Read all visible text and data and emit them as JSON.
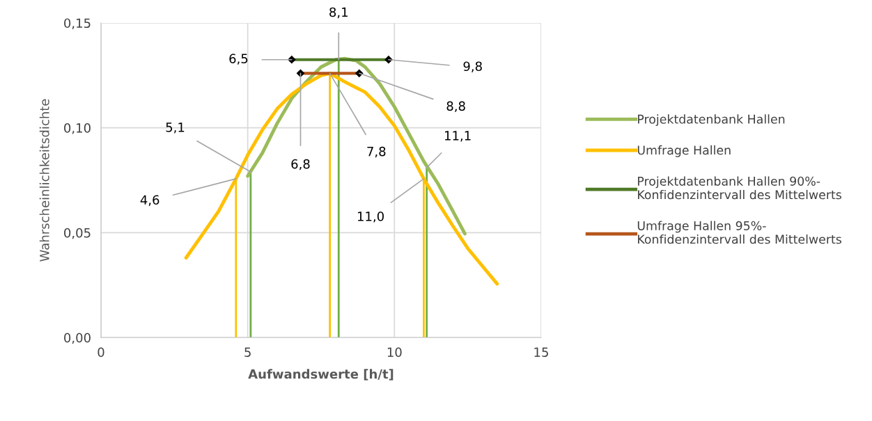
{
  "chart_data": {
    "type": "line",
    "xlabel": "Aufwandswerte [h/t]",
    "ylabel": "Wahrscheinlichkeitsdichte",
    "xlim": [
      0,
      15
    ],
    "xticks": [
      0,
      5,
      10,
      15
    ],
    "ylim": [
      0,
      0.15
    ],
    "yticks": [
      {
        "value": 0,
        "label": "0,00"
      },
      {
        "value": 0.05,
        "label": "0,05"
      },
      {
        "value": 0.1,
        "label": "0,10"
      },
      {
        "value": 0.15,
        "label": "0,15"
      }
    ],
    "grid": true,
    "legend": "right",
    "series": [
      {
        "name": "Projektdatenbank Hallen",
        "color": "#9bbb59",
        "x": [
          5.0,
          5.5,
          6.0,
          6.5,
          7.0,
          7.5,
          8.0,
          8.3,
          8.7,
          9.0,
          9.5,
          10.0,
          10.5,
          11.0,
          11.5,
          12.0,
          12.4
        ],
        "values": [
          0.077,
          0.088,
          0.102,
          0.114,
          0.122,
          0.129,
          0.1325,
          0.133,
          0.132,
          0.129,
          0.121,
          0.11,
          0.097,
          0.084,
          0.073,
          0.06,
          0.0495
        ]
      },
      {
        "name": "Umfrage Hallen",
        "color": "#ffc000",
        "x": [
          2.9,
          3.5,
          4.0,
          4.6,
          5.0,
          5.5,
          6.0,
          6.5,
          7.0,
          7.5,
          7.8,
          8.3,
          9.0,
          9.5,
          10.0,
          10.5,
          11.0,
          11.5,
          12.0,
          12.5,
          13.0,
          13.5
        ],
        "values": [
          0.038,
          0.05,
          0.06,
          0.0757,
          0.087,
          0.099,
          0.109,
          0.116,
          0.121,
          0.125,
          0.126,
          0.122,
          0.117,
          0.11,
          0.101,
          0.089,
          0.0757,
          0.064,
          0.053,
          0.0425,
          0.034,
          0.0256
        ]
      },
      {
        "name": "Projektdatenbank Hallen 90%-\nKonfidenzintervall des Mittelwerts",
        "color": "#4f7a28",
        "marker": "diamond",
        "x": [
          6.5,
          9.8
        ],
        "values": [
          0.1325,
          0.1325
        ]
      },
      {
        "name": "Umfrage Hallen 95%-\nKonfidenzintervall des Mittelwerts",
        "color": "#b5561a",
        "marker": "diamond",
        "x": [
          6.8,
          8.8
        ],
        "values": [
          0.126,
          0.126
        ]
      },
      {
        "color": "#ffc000",
        "x": [
          4.6,
          4.6
        ],
        "values": [
          0,
          0.0757
        ]
      },
      {
        "color": "#70ad47",
        "x": [
          5.1,
          5.1
        ],
        "values": [
          0,
          0.079
        ]
      },
      {
        "color": "#ffc000",
        "x": [
          7.8,
          7.8
        ],
        "values": [
          0,
          0.126
        ]
      },
      {
        "color": "#70ad47",
        "x": [
          8.1,
          8.1
        ],
        "values": [
          0,
          0.1325
        ]
      },
      {
        "color": "#ffc000",
        "x": [
          11.0,
          11.0
        ],
        "values": [
          0,
          0.0757
        ]
      },
      {
        "color": "#70ad47",
        "x": [
          11.1,
          11.1
        ],
        "values": [
          0,
          0.081
        ]
      }
    ],
    "annotations": [
      {
        "text": "4,6",
        "x": 4.6,
        "y": 0.0757
      },
      {
        "text": "5,1",
        "x": 5.1,
        "y": 0.079
      },
      {
        "text": "6,5",
        "x": 6.5,
        "y": 0.1325
      },
      {
        "text": "8,1",
        "x": 8.1,
        "y": 0.1325
      },
      {
        "text": "9,8",
        "x": 9.8,
        "y": 0.1325
      },
      {
        "text": "6,8",
        "x": 6.8,
        "y": 0.126
      },
      {
        "text": "7,8",
        "x": 7.8,
        "y": 0.126
      },
      {
        "text": "8,8",
        "x": 8.8,
        "y": 0.126
      },
      {
        "text": "11,0",
        "x": 11.0,
        "y": 0.0757
      },
      {
        "text": "11,1",
        "x": 11.1,
        "y": 0.081
      }
    ]
  }
}
